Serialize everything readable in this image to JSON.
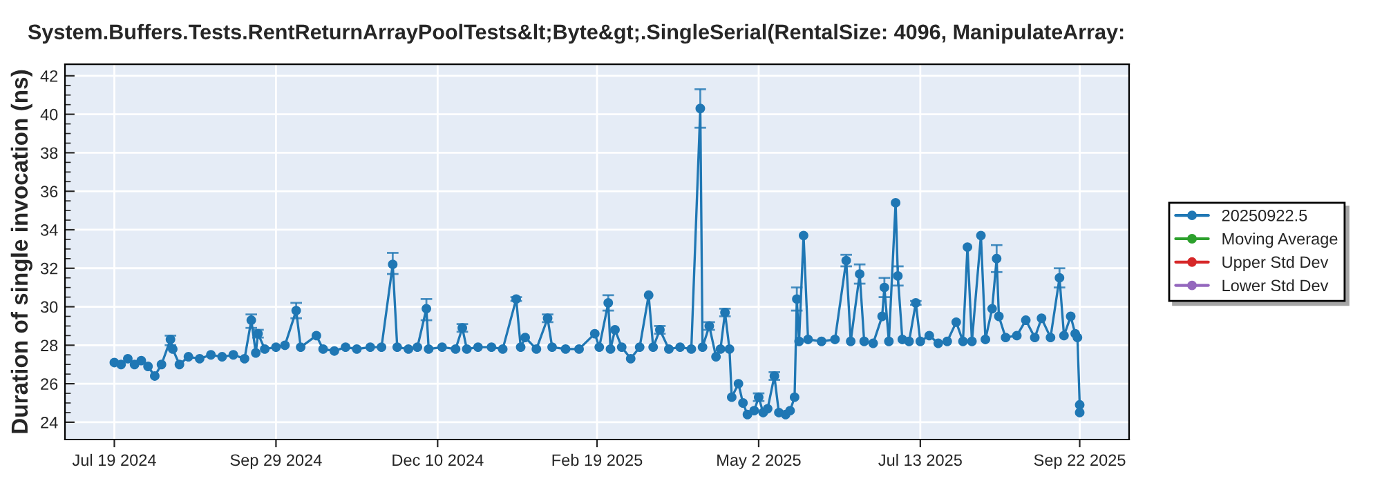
{
  "chart_data": {
    "type": "line",
    "title": "System.Buffers.Tests.RentReturnArrayPoolTests&lt;Byte&gt;.SingleSerial(RentalSize: 4096, ManipulateArray:",
    "ylabel": "Duration of single invocation (ns)",
    "xlim": [
      "2024-06-27",
      "2025-10-14"
    ],
    "xticks": [
      {
        "value": "2024-07-19",
        "label": "Jul 19 2024"
      },
      {
        "value": "2024-09-29",
        "label": "Sep 29 2024"
      },
      {
        "value": "2024-12-10",
        "label": "Dec 10 2024"
      },
      {
        "value": "2025-02-19",
        "label": "Feb 19 2025"
      },
      {
        "value": "2025-05-02",
        "label": "May 2 2025"
      },
      {
        "value": "2025-07-13",
        "label": "Jul 13 2025"
      },
      {
        "value": "2025-09-22",
        "label": "Sep 22 2025"
      }
    ],
    "ylim": [
      23.1,
      42.6
    ],
    "yticks": [
      24,
      {
        "value": 24.5,
        "label": null
      },
      {
        "value": 25,
        "label": null
      },
      {
        "value": 25.5,
        "label": null
      },
      26,
      {
        "value": 26.5,
        "label": null
      },
      {
        "value": 27,
        "label": null
      },
      {
        "value": 27.5,
        "label": null
      },
      28,
      {
        "value": 28.5,
        "label": null
      },
      {
        "value": 29,
        "label": null
      },
      {
        "value": 29.5,
        "label": null
      },
      30,
      {
        "value": 30.5,
        "label": null
      },
      {
        "value": 31,
        "label": null
      },
      {
        "value": 31.5,
        "label": null
      },
      32,
      {
        "value": 32.5,
        "label": null
      },
      {
        "value": 33,
        "label": null
      },
      {
        "value": 33.5,
        "label": null
      },
      34,
      {
        "value": 34.5,
        "label": null
      },
      {
        "value": 35,
        "label": null
      },
      {
        "value": 35.5,
        "label": null
      },
      36,
      {
        "value": 36.5,
        "label": null
      },
      {
        "value": 37,
        "label": null
      },
      {
        "value": 37.5,
        "label": null
      },
      38,
      {
        "value": 38.5,
        "label": null
      },
      {
        "value": 39,
        "label": null
      },
      {
        "value": 39.5,
        "label": null
      },
      40,
      {
        "value": 40.5,
        "label": null
      },
      {
        "value": 41,
        "label": null
      },
      {
        "value": 41.5,
        "label": null
      },
      42
    ],
    "grid": true,
    "legend": "right",
    "marker": "circle",
    "line_style": "solid",
    "series": [
      {
        "name": "20250922.5",
        "color": "#1f77b4",
        "x": [
          "2024-07-19",
          "2024-07-22",
          "2024-07-25",
          "2024-07-28",
          "2024-07-31",
          "2024-08-03",
          "2024-08-06",
          "2024-08-09",
          "2024-08-13",
          "2024-08-14",
          "2024-08-17",
          "2024-08-21",
          "2024-08-26",
          "2024-08-31",
          "2024-09-05",
          "2024-09-10",
          "2024-09-15",
          "2024-09-18",
          "2024-09-20",
          "2024-09-21",
          "2024-09-24",
          "2024-09-29",
          "2024-10-03",
          "2024-10-08",
          "2024-10-10",
          "2024-10-17",
          "2024-10-20",
          "2024-10-25",
          "2024-10-30",
          "2024-11-04",
          "2024-11-10",
          "2024-11-15",
          "2024-11-20",
          "2024-11-22",
          "2024-11-27",
          "2024-12-01",
          "2024-12-05",
          "2024-12-06",
          "2024-12-12",
          "2024-12-18",
          "2024-12-21",
          "2024-12-23",
          "2024-12-28",
          "2025-01-03",
          "2025-01-08",
          "2025-01-14",
          "2025-01-16",
          "2025-01-18",
          "2025-01-23",
          "2025-01-28",
          "2025-01-30",
          "2025-02-05",
          "2025-02-11",
          "2025-02-18",
          "2025-02-20",
          "2025-02-24",
          "2025-02-25",
          "2025-02-27",
          "2025-03-02",
          "2025-03-06",
          "2025-03-10",
          "2025-03-14",
          "2025-03-16",
          "2025-03-19",
          "2025-03-23",
          "2025-03-28",
          "2025-04-02",
          "2025-04-06",
          "2025-04-07",
          "2025-04-10",
          "2025-04-13",
          "2025-04-15",
          "2025-04-17",
          "2025-04-19",
          "2025-04-20",
          "2025-04-23",
          "2025-04-25",
          "2025-04-27",
          "2025-04-30",
          "2025-05-02",
          "2025-05-04",
          "2025-05-06",
          "2025-05-09",
          "2025-05-11",
          "2025-05-14",
          "2025-05-16",
          "2025-05-18",
          "2025-05-19",
          "2025-05-20",
          "2025-05-22",
          "2025-05-24",
          "2025-05-30",
          "2025-06-05",
          "2025-06-10",
          "2025-06-12",
          "2025-06-16",
          "2025-06-18",
          "2025-06-22",
          "2025-06-26",
          "2025-06-27",
          "2025-06-29",
          "2025-07-02",
          "2025-07-03",
          "2025-07-05",
          "2025-07-08",
          "2025-07-11",
          "2025-07-13",
          "2025-07-17",
          "2025-07-21",
          "2025-07-25",
          "2025-07-29",
          "2025-08-01",
          "2025-08-03",
          "2025-08-05",
          "2025-08-09",
          "2025-08-11",
          "2025-08-14",
          "2025-08-16",
          "2025-08-17",
          "2025-08-20",
          "2025-08-25",
          "2025-08-29",
          "2025-09-02",
          "2025-09-05",
          "2025-09-09",
          "2025-09-13",
          "2025-09-15",
          "2025-09-18",
          "2025-09-20",
          "2025-09-21",
          "2025-09-22",
          "2025-09-22"
        ],
        "values": [
          27.1,
          27.0,
          27.3,
          27.0,
          27.2,
          26.9,
          26.4,
          27.0,
          28.3,
          27.8,
          27.0,
          27.4,
          27.3,
          27.5,
          27.4,
          27.5,
          27.3,
          29.3,
          27.6,
          28.6,
          27.8,
          27.9,
          28.0,
          29.8,
          27.9,
          28.5,
          27.8,
          27.7,
          27.9,
          27.8,
          27.9,
          27.9,
          32.2,
          27.9,
          27.8,
          27.9,
          29.9,
          27.8,
          27.9,
          27.8,
          28.9,
          27.8,
          27.9,
          27.9,
          27.8,
          30.4,
          27.9,
          28.4,
          27.8,
          29.4,
          27.9,
          27.8,
          27.8,
          28.6,
          27.9,
          30.2,
          27.8,
          28.8,
          27.9,
          27.3,
          27.9,
          30.6,
          27.9,
          28.8,
          27.8,
          27.9,
          27.8,
          40.3,
          27.9,
          29.0,
          27.4,
          27.8,
          29.7,
          27.8,
          25.3,
          26.0,
          25.0,
          24.4,
          24.6,
          25.3,
          24.5,
          24.7,
          26.4,
          24.5,
          24.4,
          24.6,
          25.3,
          30.4,
          28.2,
          33.7,
          28.3,
          28.2,
          28.3,
          32.4,
          28.2,
          31.7,
          28.2,
          28.1,
          29.5,
          31.0,
          28.2,
          35.4,
          31.6,
          28.3,
          28.2,
          30.2,
          28.2,
          28.5,
          28.1,
          28.2,
          29.2,
          28.2,
          33.1,
          28.2,
          33.7,
          28.3,
          29.9,
          32.5,
          29.5,
          28.4,
          28.5,
          29.3,
          28.4,
          29.4,
          28.4,
          31.5,
          28.5,
          29.5,
          28.6,
          28.4,
          24.9,
          24.5
        ],
        "errors": [
          null,
          null,
          null,
          null,
          null,
          null,
          null,
          null,
          [
            28.0,
            28.5
          ],
          null,
          null,
          null,
          null,
          null,
          null,
          null,
          null,
          [
            28.9,
            29.6
          ],
          null,
          [
            28.4,
            28.8
          ],
          null,
          null,
          null,
          [
            29.4,
            30.2
          ],
          null,
          null,
          null,
          null,
          null,
          null,
          null,
          null,
          [
            31.7,
            32.8
          ],
          null,
          null,
          null,
          [
            29.3,
            30.4
          ],
          null,
          null,
          null,
          [
            28.7,
            29.1
          ],
          null,
          null,
          null,
          null,
          [
            30.3,
            30.5
          ],
          null,
          null,
          null,
          [
            29.2,
            29.6
          ],
          null,
          null,
          null,
          null,
          null,
          [
            29.8,
            30.6
          ],
          null,
          null,
          null,
          null,
          null,
          null,
          null,
          [
            28.6,
            29.0
          ],
          null,
          null,
          null,
          [
            39.3,
            41.3
          ],
          null,
          [
            28.8,
            29.2
          ],
          null,
          null,
          [
            29.5,
            29.9
          ],
          null,
          null,
          null,
          null,
          null,
          null,
          [
            25.1,
            25.5
          ],
          null,
          null,
          [
            26.2,
            26.6
          ],
          null,
          null,
          null,
          null,
          [
            29.8,
            31.0
          ],
          null,
          null,
          null,
          null,
          null,
          [
            32.1,
            32.7
          ],
          null,
          [
            31.2,
            32.2
          ],
          null,
          null,
          null,
          [
            30.5,
            31.5
          ],
          null,
          null,
          [
            31.1,
            32.1
          ],
          null,
          null,
          [
            30.1,
            30.3
          ],
          null,
          null,
          null,
          null,
          null,
          null,
          null,
          null,
          null,
          null,
          null,
          [
            31.8,
            33.2
          ],
          null,
          null,
          null,
          null,
          null,
          null,
          null,
          [
            31.0,
            32.0
          ],
          null,
          null,
          null,
          null,
          null,
          null
        ]
      },
      {
        "name": "Moving Average",
        "color": "#2ca02c"
      },
      {
        "name": "Upper Std Dev",
        "color": "#d62728"
      },
      {
        "name": "Lower Std Dev",
        "color": "#9467bd"
      }
    ]
  }
}
